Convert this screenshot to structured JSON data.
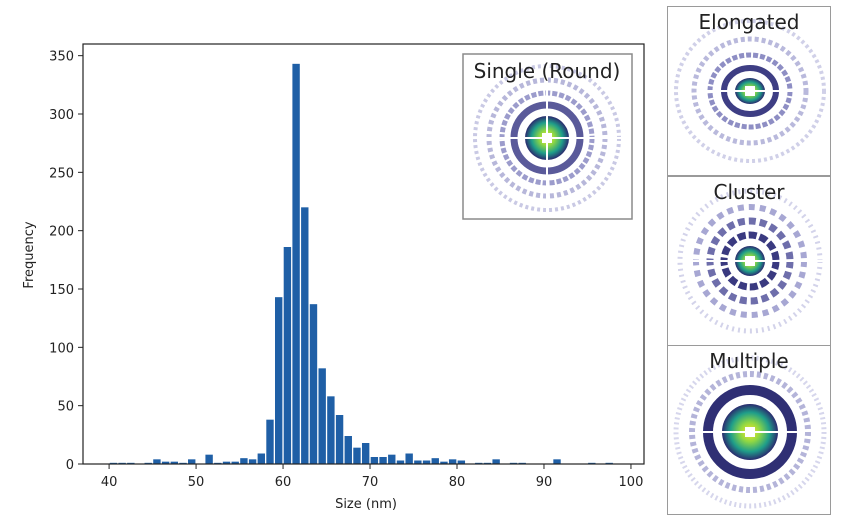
{
  "chart_data": {
    "type": "bar",
    "xlabel": "Size (nm)",
    "ylabel": "Frequency",
    "xlim": [
      37,
      101.5
    ],
    "ylim": [
      0,
      360
    ],
    "xticks": [
      40,
      50,
      60,
      70,
      80,
      90,
      100
    ],
    "yticks": [
      0,
      50,
      100,
      150,
      200,
      250,
      300,
      350
    ],
    "bar_width_nm": 0.85,
    "bar_color": "#1f5fa6",
    "bars": [
      {
        "x": 40.5,
        "value": 1
      },
      {
        "x": 41.5,
        "value": 1
      },
      {
        "x": 42.5,
        "value": 1
      },
      {
        "x": 43.5,
        "value": 0
      },
      {
        "x": 44.5,
        "value": 1
      },
      {
        "x": 45.5,
        "value": 4
      },
      {
        "x": 46.5,
        "value": 2
      },
      {
        "x": 47.5,
        "value": 2
      },
      {
        "x": 48.5,
        "value": 1
      },
      {
        "x": 49.5,
        "value": 4
      },
      {
        "x": 50.5,
        "value": 0
      },
      {
        "x": 51.5,
        "value": 8
      },
      {
        "x": 52.5,
        "value": 1
      },
      {
        "x": 53.5,
        "value": 2
      },
      {
        "x": 54.5,
        "value": 2
      },
      {
        "x": 55.5,
        "value": 5
      },
      {
        "x": 56.5,
        "value": 4
      },
      {
        "x": 57.5,
        "value": 9
      },
      {
        "x": 58.5,
        "value": 38
      },
      {
        "x": 59.5,
        "value": 143
      },
      {
        "x": 60.5,
        "value": 186
      },
      {
        "x": 61.5,
        "value": 343
      },
      {
        "x": 62.5,
        "value": 220
      },
      {
        "x": 63.5,
        "value": 137
      },
      {
        "x": 64.5,
        "value": 82
      },
      {
        "x": 65.5,
        "value": 58
      },
      {
        "x": 66.5,
        "value": 42
      },
      {
        "x": 67.5,
        "value": 24
      },
      {
        "x": 68.5,
        "value": 14
      },
      {
        "x": 69.5,
        "value": 18
      },
      {
        "x": 70.5,
        "value": 6
      },
      {
        "x": 71.5,
        "value": 6
      },
      {
        "x": 72.5,
        "value": 8
      },
      {
        "x": 73.5,
        "value": 3
      },
      {
        "x": 74.5,
        "value": 9
      },
      {
        "x": 75.5,
        "value": 3
      },
      {
        "x": 76.5,
        "value": 3
      },
      {
        "x": 77.5,
        "value": 5
      },
      {
        "x": 78.5,
        "value": 2
      },
      {
        "x": 79.5,
        "value": 4
      },
      {
        "x": 80.5,
        "value": 3
      },
      {
        "x": 81.5,
        "value": 0
      },
      {
        "x": 82.5,
        "value": 1
      },
      {
        "x": 83.5,
        "value": 1
      },
      {
        "x": 84.5,
        "value": 4
      },
      {
        "x": 85.5,
        "value": 0
      },
      {
        "x": 86.5,
        "value": 1
      },
      {
        "x": 87.5,
        "value": 1
      },
      {
        "x": 88.5,
        "value": 0
      },
      {
        "x": 89.5,
        "value": 0
      },
      {
        "x": 90.5,
        "value": 0
      },
      {
        "x": 91.5,
        "value": 4
      },
      {
        "x": 92.5,
        "value": 0
      },
      {
        "x": 93.5,
        "value": 0
      },
      {
        "x": 94.5,
        "value": 0
      },
      {
        "x": 95.5,
        "value": 1
      },
      {
        "x": 96.5,
        "value": 0
      },
      {
        "x": 97.5,
        "value": 1
      }
    ]
  },
  "inset": {
    "title": "Single (Round)"
  },
  "side_panels": [
    {
      "title": "Elongated"
    },
    {
      "title": "Cluster"
    },
    {
      "title": "Multiple"
    }
  ],
  "icons": {
    "diffraction_pattern": "diffraction-pattern-icon"
  },
  "colors": {
    "ring": "#2a2a6e",
    "core_outer": "#1f9e89",
    "core_mid": "#8fd744",
    "core_inner": "#fde725",
    "center": "#ffffff"
  }
}
